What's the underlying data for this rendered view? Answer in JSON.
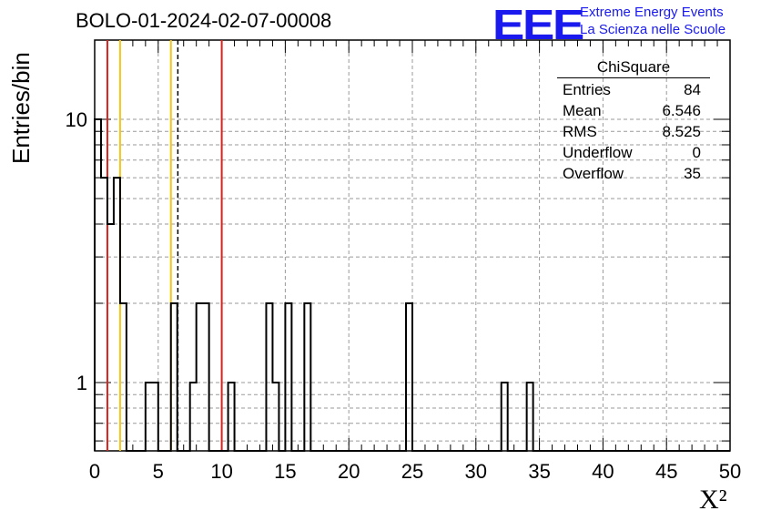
{
  "title": "BOLO-01-2024-02-07-00008",
  "logo": {
    "mark": "EEE",
    "line1": "Extreme Energy Events",
    "line2": "La Scienza nelle Scuole"
  },
  "stats": {
    "title": "ChiSquare",
    "rows": [
      {
        "label": "Entries",
        "value": "84"
      },
      {
        "label": "Mean",
        "value": "6.546"
      },
      {
        "label": "RMS",
        "value": "8.525"
      },
      {
        "label": "Underflow",
        "value": "0"
      },
      {
        "label": "Overflow",
        "value": "35"
      }
    ]
  },
  "chart_data": {
    "type": "bar",
    "title": "BOLO-01-2024-02-07-00008",
    "xlabel": "X²",
    "ylabel": "Entries/bin",
    "xlim": [
      0,
      50
    ],
    "ylim": [
      0.55,
      20
    ],
    "yscale": "log",
    "grid": true,
    "bin_width": 0.5,
    "x_ticks": [
      "0",
      "5",
      "10",
      "15",
      "20",
      "25",
      "30",
      "35",
      "40",
      "45",
      "50"
    ],
    "y_ticks": [
      "1",
      "10"
    ],
    "bins": [
      {
        "x": 0.0,
        "count": 10
      },
      {
        "x": 0.5,
        "count": 6
      },
      {
        "x": 1.0,
        "count": 4
      },
      {
        "x": 1.5,
        "count": 6
      },
      {
        "x": 2.0,
        "count": 2
      },
      {
        "x": 4.0,
        "count": 1
      },
      {
        "x": 4.5,
        "count": 1
      },
      {
        "x": 6.0,
        "count": 2
      },
      {
        "x": 7.5,
        "count": 1
      },
      {
        "x": 8.0,
        "count": 2
      },
      {
        "x": 8.5,
        "count": 2
      },
      {
        "x": 10.5,
        "count": 1
      },
      {
        "x": 13.5,
        "count": 2
      },
      {
        "x": 14.0,
        "count": 1
      },
      {
        "x": 15.0,
        "count": 2
      },
      {
        "x": 16.5,
        "count": 2
      },
      {
        "x": 24.5,
        "count": 2
      },
      {
        "x": 32.0,
        "count": 1
      },
      {
        "x": 34.0,
        "count": 1
      }
    ],
    "reference_lines": [
      {
        "x": 1.0,
        "color": "#e0201b",
        "style": "solid"
      },
      {
        "x": 2.0,
        "color": "#f5c518",
        "style": "solid"
      },
      {
        "x": 6.0,
        "color": "#f5c518",
        "style": "solid"
      },
      {
        "x": 6.546,
        "color": "#000000",
        "style": "dashed"
      },
      {
        "x": 10.0,
        "color": "#e0201b",
        "style": "solid"
      }
    ]
  }
}
